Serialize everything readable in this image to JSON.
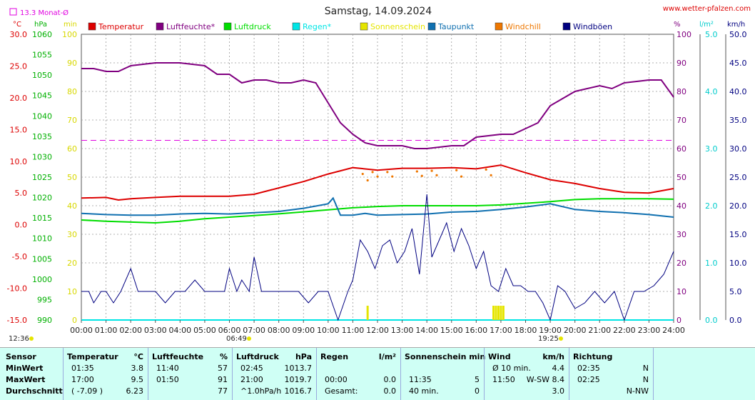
{
  "title": "Samstag, 14.09.2024",
  "website": "www.wetter-pfalzen.com",
  "monthavg_label": "13.3 Monat-Ø",
  "unit_labels": {
    "temp": "°C",
    "press": "hPa",
    "min": "min",
    "pct": "%",
    "rain": "l/m²",
    "wind": "km/h"
  },
  "legend": [
    {
      "name": "Temperatur",
      "color": "#dd0000"
    },
    {
      "name": "Luftfeuchte*",
      "color": "#800080"
    },
    {
      "name": "Luftdruck",
      "color": "#00dd00"
    },
    {
      "name": "Regen*",
      "color": "#00e5e5"
    },
    {
      "name": "Sonnenschein",
      "color": "#e5e500"
    },
    {
      "name": "Taupunkt",
      "color": "#1070b0"
    },
    {
      "name": "Windchill",
      "color": "#ee7700"
    },
    {
      "name": "Windböen",
      "color": "#000080"
    }
  ],
  "annotations": {
    "sunrise_left": "12:36",
    "sunrise": "06:49",
    "sunset": "19:25"
  },
  "chart_data": {
    "type": "line",
    "x_ticks": [
      "00:00",
      "01:00",
      "02:00",
      "03:00",
      "04:00",
      "05:00",
      "06:00",
      "07:00",
      "08:00",
      "09:00",
      "10:00",
      "11:00",
      "12:00",
      "13:00",
      "14:00",
      "15:00",
      "16:00",
      "17:00",
      "18:00",
      "19:00",
      "20:00",
      "21:00",
      "22:00",
      "23:00",
      "24:00"
    ],
    "axes": {
      "temp": {
        "ticks": [
          "30.0",
          "25.0",
          "20.0",
          "15.0",
          "10.0",
          "5.0",
          "0.0",
          "-5.0",
          "-10.0",
          "-15.0"
        ],
        "ylim": [
          -15,
          30
        ]
      },
      "press": {
        "ticks": [
          "1060",
          "1055",
          "1050",
          "1045",
          "1040",
          "1035",
          "1030",
          "1025",
          "1020",
          "1015",
          "1010",
          "1005",
          "1000",
          "995",
          "990"
        ],
        "ylim": [
          990,
          1060
        ]
      },
      "min": {
        "ticks": [
          "100",
          "90",
          "80",
          "70",
          "60",
          "50",
          "40",
          "30",
          "20",
          "10",
          "0"
        ],
        "ylim": [
          0,
          100
        ]
      },
      "pct": {
        "ticks": [
          "100",
          "90",
          "80",
          "70",
          "60",
          "50",
          "40",
          "30",
          "20",
          "10",
          "0"
        ],
        "ylim": [
          0,
          100
        ]
      },
      "rain": {
        "ticks": [
          "5.0",
          "4.0",
          "3.0",
          "2.0",
          "1.0",
          "0.0"
        ],
        "ylim": [
          0,
          5
        ]
      },
      "wind": {
        "ticks": [
          "50.0",
          "45.0",
          "40.0",
          "35.0",
          "30.0",
          "25.0",
          "20.0",
          "15.0",
          "10.0",
          "5.0",
          "0.0"
        ],
        "ylim": [
          0,
          50
        ]
      }
    },
    "monthavg_temp": 13.3,
    "series": [
      {
        "name": "Temperatur",
        "unit": "°C",
        "x": [
          0,
          1,
          1.5,
          2,
          3,
          4,
          5,
          6,
          7,
          8,
          9,
          10,
          11,
          12,
          13,
          14,
          15,
          16,
          17,
          18,
          19,
          20,
          21,
          22,
          23,
          24
        ],
        "y": [
          4.2,
          4.3,
          3.9,
          4.1,
          4.3,
          4.5,
          4.5,
          4.5,
          4.8,
          5.8,
          6.8,
          8.0,
          9.0,
          8.6,
          8.9,
          8.9,
          9.0,
          8.8,
          9.4,
          8.2,
          7.1,
          6.5,
          5.7,
          5.1,
          5.0,
          5.7
        ]
      },
      {
        "name": "Luftfeuchte*",
        "unit": "%",
        "x": [
          0,
          0.5,
          1,
          1.5,
          2,
          3,
          4,
          5,
          5.5,
          6,
          6.5,
          7,
          7.5,
          8,
          8.5,
          9,
          9.5,
          10,
          10.5,
          11,
          11.5,
          12,
          13,
          13.5,
          14,
          15,
          15.5,
          16,
          17,
          17.5,
          18,
          18.5,
          19,
          20,
          21,
          21.5,
          22,
          23,
          23.5,
          24
        ],
        "y": [
          88,
          88,
          87,
          87,
          89,
          90,
          90,
          89,
          86,
          86,
          83,
          84,
          84,
          83,
          83,
          84,
          83,
          76,
          69,
          65,
          62,
          61,
          61,
          60,
          60,
          61,
          61,
          64,
          65,
          65,
          67,
          69,
          75,
          80,
          82,
          81,
          83,
          84,
          84,
          78
        ]
      },
      {
        "name": "Luftdruck",
        "unit": "hPa",
        "x": [
          0,
          1,
          2,
          3,
          4,
          5,
          6,
          7,
          8,
          9,
          10,
          11,
          12,
          13,
          14,
          15,
          16,
          17,
          18,
          19,
          20,
          21,
          22,
          23,
          24
        ],
        "y": [
          1014.5,
          1014.2,
          1014.0,
          1013.8,
          1014.2,
          1014.8,
          1015.2,
          1015.6,
          1016.0,
          1016.5,
          1017.0,
          1017.5,
          1017.8,
          1018.0,
          1018.0,
          1018.0,
          1018.0,
          1018.2,
          1018.6,
          1019.0,
          1019.5,
          1019.7,
          1019.7,
          1019.7,
          1019.6
        ]
      },
      {
        "name": "Regen*",
        "unit": "l/m²",
        "x": [
          0,
          24
        ],
        "y": [
          0,
          0
        ]
      },
      {
        "name": "Taupunkt",
        "unit": "°C",
        "x": [
          0,
          1,
          2,
          3,
          4,
          5,
          6,
          7,
          8,
          9,
          10,
          10.2,
          10.5,
          11,
          11.5,
          12,
          13,
          14,
          15,
          16,
          17,
          18,
          19,
          20,
          21,
          22,
          23,
          24
        ],
        "y": [
          1.8,
          1.6,
          1.5,
          1.5,
          1.7,
          1.8,
          1.7,
          1.9,
          2.1,
          2.6,
          3.3,
          4.2,
          1.5,
          1.5,
          1.8,
          1.5,
          1.6,
          1.7,
          2.0,
          2.1,
          2.4,
          2.8,
          3.3,
          2.4,
          2.1,
          1.9,
          1.6,
          1.2
        ]
      },
      {
        "name": "Windchill",
        "unit": "°C",
        "x": [
          11.4,
          11.6,
          11.8,
          12.0,
          12.4,
          12.6,
          13.6,
          13.8,
          14.2,
          14.4,
          15.2,
          15.4,
          16.4,
          16.6
        ],
        "y": [
          8.0,
          7.0,
          8.3,
          7.6,
          8.3,
          7.6,
          8.4,
          7.7,
          8.5,
          7.8,
          8.6,
          7.6,
          8.7,
          7.8
        ]
      },
      {
        "name": "Windböen",
        "unit": "km/h",
        "x": [
          0,
          0.3,
          0.5,
          0.8,
          1,
          1.3,
          1.6,
          2,
          2.3,
          2.6,
          3,
          3.4,
          3.8,
          4.2,
          4.6,
          5,
          5.4,
          5.8,
          6,
          6.3,
          6.5,
          6.8,
          7,
          7.3,
          7.6,
          8,
          8.4,
          8.8,
          9.2,
          9.6,
          10,
          10.4,
          10.8,
          11,
          11.3,
          11.6,
          11.9,
          12.2,
          12.5,
          12.8,
          13.1,
          13.4,
          13.7,
          14,
          14.2,
          14.5,
          14.8,
          15.1,
          15.4,
          15.7,
          16,
          16.3,
          16.6,
          16.9,
          17.2,
          17.5,
          17.8,
          18.1,
          18.4,
          18.7,
          19,
          19.3,
          19.6,
          20,
          20.4,
          20.8,
          21.2,
          21.6,
          22,
          22.4,
          22.8,
          23.2,
          23.6,
          24
        ],
        "y": [
          5,
          5,
          3,
          5,
          5,
          3,
          5,
          9,
          5,
          5,
          5,
          3,
          5,
          5,
          7,
          5,
          5,
          5,
          9,
          5,
          7,
          5,
          11,
          5,
          5,
          5,
          5,
          5,
          3,
          5,
          5,
          0,
          5,
          7,
          14,
          12,
          9,
          13,
          14,
          10,
          12,
          16,
          8,
          22,
          11,
          14,
          17,
          12,
          16,
          13,
          9,
          12,
          6,
          5,
          9,
          6,
          6,
          5,
          5,
          3,
          0,
          6,
          5,
          2,
          3,
          5,
          3,
          5,
          0,
          5,
          5,
          6,
          8,
          12
        ]
      },
      {
        "name": "Sonnenschein",
        "unit": "min",
        "x": [
          11.6,
          16.7,
          16.8,
          16.9,
          17.0,
          17.1
        ],
        "y": [
          5,
          5,
          5,
          5,
          5,
          5
        ]
      }
    ]
  },
  "table": {
    "row_labels": [
      "Sensor",
      "MinWert",
      "MaxWert",
      "Durchschnitt"
    ],
    "groups": [
      {
        "h": [
          "Temperatur",
          "°C"
        ],
        "rows": [
          [
            "01:35",
            "3.8"
          ],
          [
            "17:00",
            "9.5"
          ],
          [
            "( -7.09 )",
            "6.23"
          ]
        ]
      },
      {
        "h": [
          "Luftfeuchte",
          "%"
        ],
        "rows": [
          [
            "11:40",
            "57"
          ],
          [
            "01:50",
            "91"
          ],
          [
            "",
            "77"
          ]
        ]
      },
      {
        "h": [
          "Luftdruck",
          "hPa"
        ],
        "rows": [
          [
            "02:45",
            "1013.7"
          ],
          [
            "21:00",
            "1019.7"
          ],
          [
            "^1.0hPa/h",
            "1016.7"
          ]
        ]
      },
      {
        "h": [
          "Regen",
          "l/m²"
        ],
        "rows": [
          [
            "",
            ""
          ],
          [
            "00:00",
            "0.0"
          ],
          [
            "Gesamt:",
            "0.0"
          ]
        ]
      },
      {
        "h": [
          "Sonnenschein min",
          ""
        ],
        "rows": [
          [
            "",
            ""
          ],
          [
            "11:35",
            "5"
          ],
          [
            "40 min.",
            "0"
          ]
        ]
      },
      {
        "h": [
          "Wind",
          "km/h"
        ],
        "rows": [
          [
            "Ø 10 min.",
            "4.4"
          ],
          [
            "11:50",
            "W-SW 8.4"
          ],
          [
            "",
            "3.0"
          ]
        ]
      },
      {
        "h": [
          "Richtung",
          ""
        ],
        "rows": [
          [
            "02:35",
            "N"
          ],
          [
            "02:25",
            "N"
          ],
          [
            "",
            "N-NW"
          ]
        ]
      }
    ]
  }
}
